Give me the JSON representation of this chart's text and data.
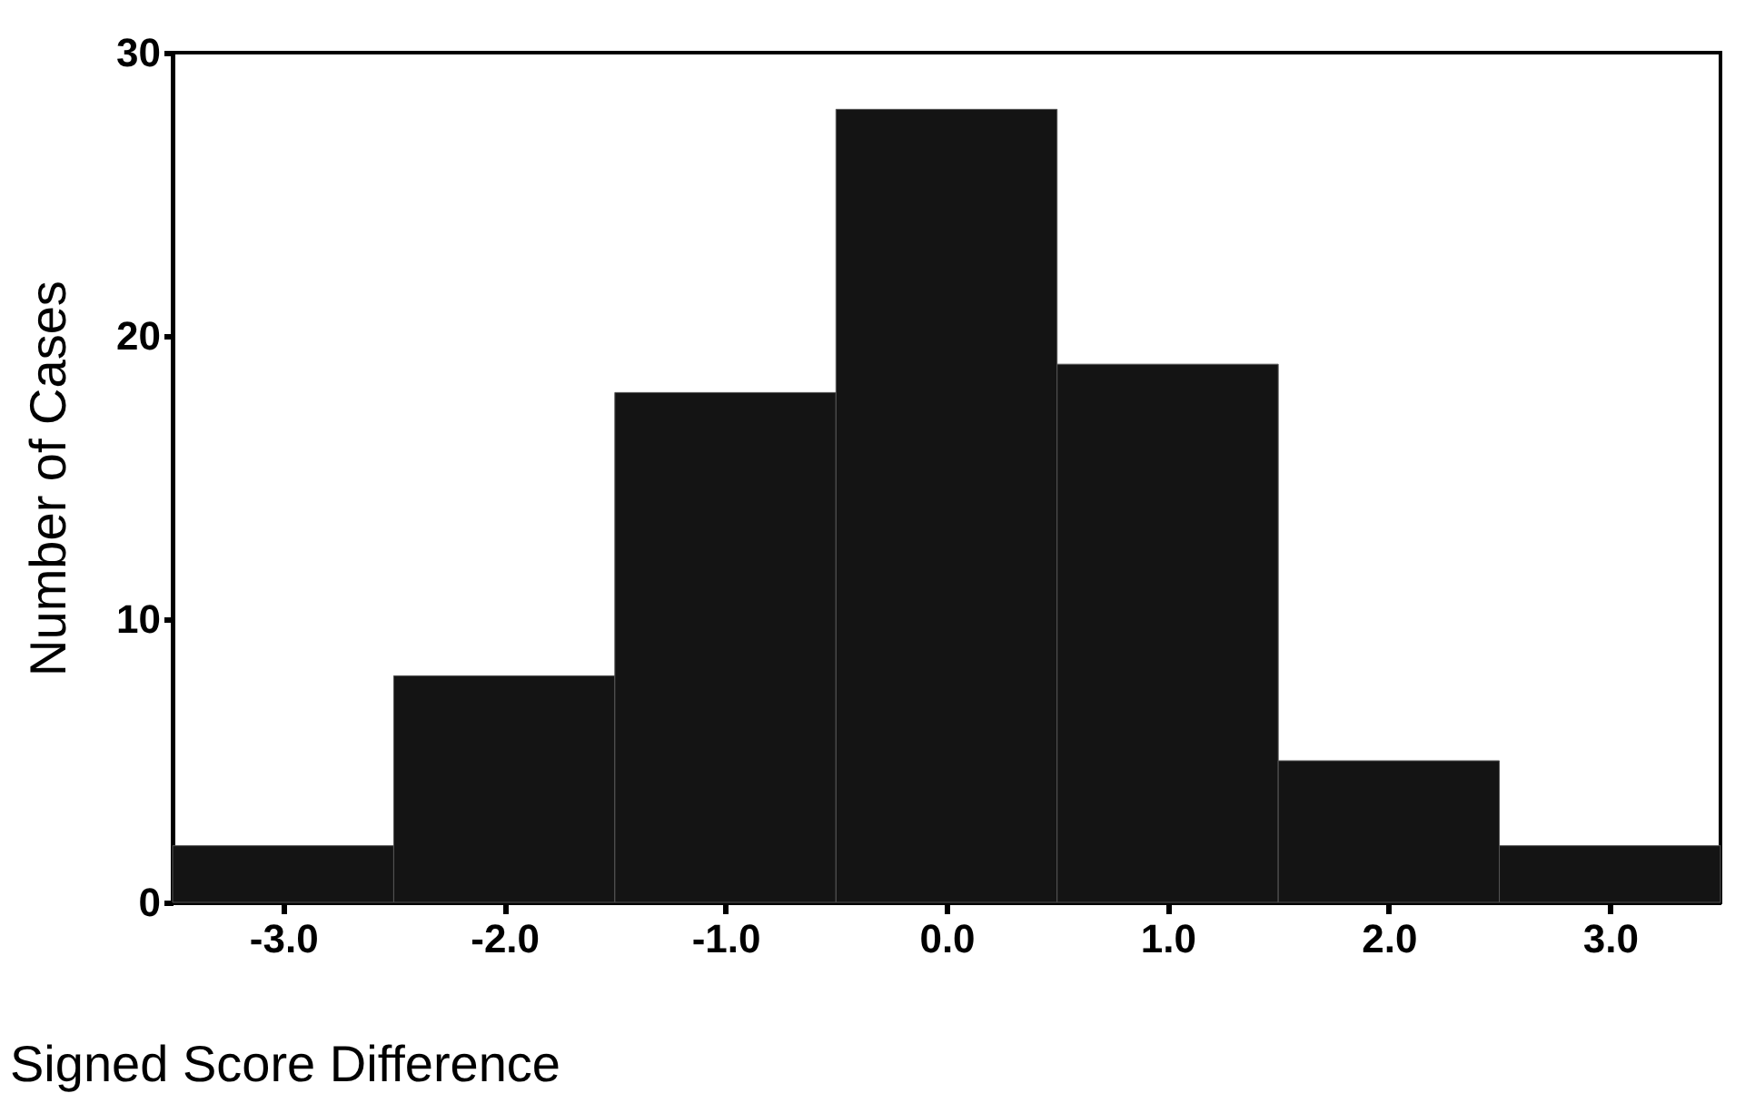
{
  "chart_data": {
    "type": "histogram",
    "xlabel": "Signed Score Difference",
    "ylabel": "Number of Cases",
    "bins": [
      -3.5,
      -2.5,
      -1.5,
      -0.5,
      0.5,
      1.5,
      2.5,
      3.5
    ],
    "values": [
      2,
      8,
      18,
      28,
      19,
      5,
      2
    ],
    "color": "#141414",
    "xlim": [
      -3.5,
      3.5
    ],
    "xticks": [
      {
        "value": -3,
        "label": "-3.0"
      },
      {
        "value": -2,
        "label": "-2.0"
      },
      {
        "value": -1,
        "label": "-1.0"
      },
      {
        "value": 0,
        "label": "0.0"
      },
      {
        "value": 1,
        "label": "1.0"
      },
      {
        "value": 2,
        "label": "2.0"
      },
      {
        "value": 3,
        "label": "3.0"
      }
    ],
    "ylim": [
      0,
      30
    ],
    "yticks": [
      0,
      10,
      20,
      30
    ],
    "grid": false
  }
}
